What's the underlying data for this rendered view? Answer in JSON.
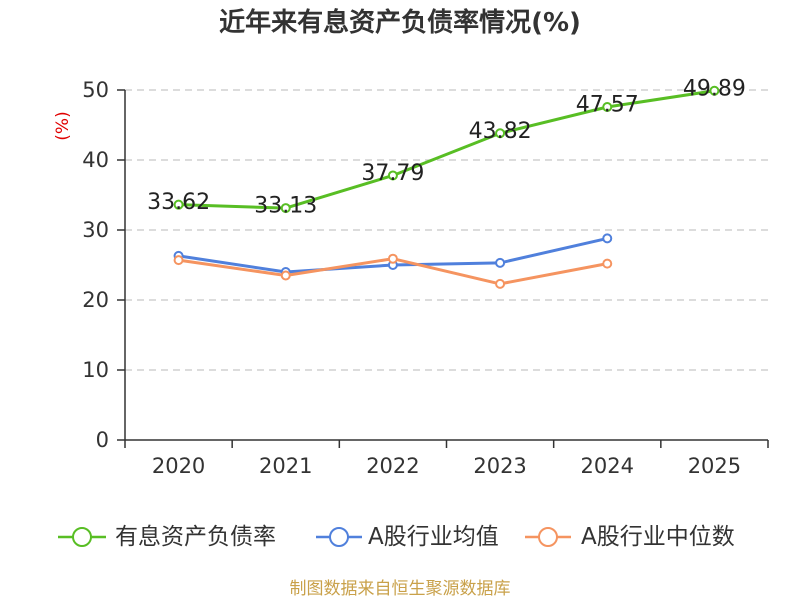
{
  "chart_data": {
    "type": "line",
    "title": "近年来有息资产负债率情况(%)",
    "xlabel": "",
    "ylabel": "(%)",
    "categories": [
      "2020",
      "2021",
      "2022",
      "2023",
      "2024",
      "2025"
    ],
    "ylim": [
      0,
      50
    ],
    "yticks": [
      0,
      10,
      20,
      30,
      40,
      50
    ],
    "grid": true,
    "grid_style": "dashed",
    "legend_position": "bottom",
    "series": [
      {
        "name": "有息资产负债率",
        "color": "#58be24",
        "data_labels": true,
        "values": [
          33.62,
          33.13,
          37.79,
          43.82,
          47.57,
          49.89
        ]
      },
      {
        "name": "A股行业均值",
        "color": "#5080dc",
        "data_labels": false,
        "values": [
          26.3,
          24.0,
          25.0,
          25.3,
          28.8,
          null
        ]
      },
      {
        "name": "A股行业中位数",
        "color": "#f59460",
        "data_labels": false,
        "values": [
          25.7,
          23.5,
          25.9,
          22.3,
          25.2,
          null
        ]
      }
    ]
  },
  "footer": {
    "source": "制图数据来自恒生聚源数据库"
  }
}
